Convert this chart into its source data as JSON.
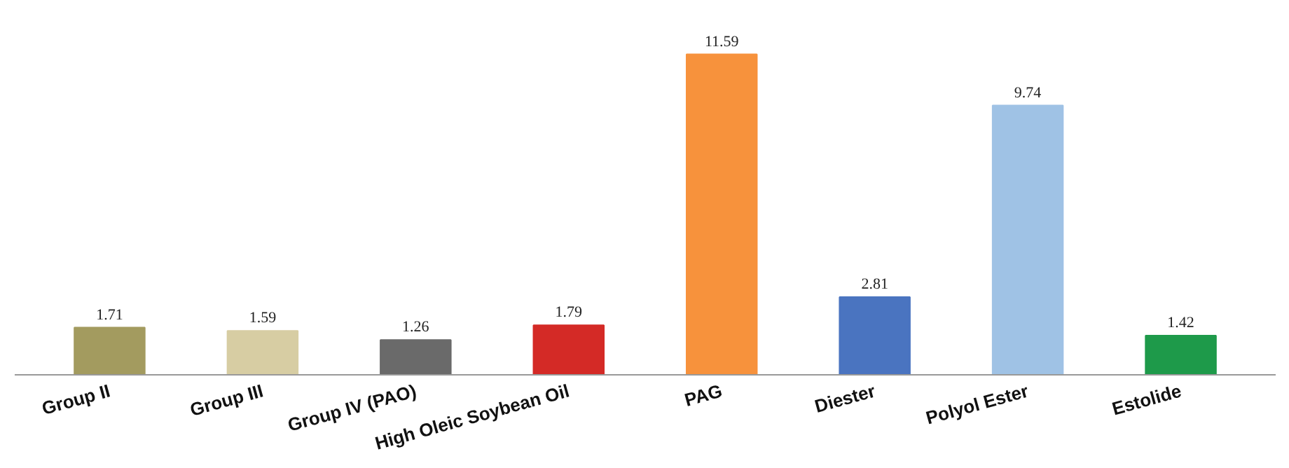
{
  "chart_data": {
    "type": "bar",
    "categories": [
      "Group II",
      "Group III",
      "Group IV (PAO)",
      "High Oleic Soybean Oil",
      "PAG",
      "Diester",
      "Polyol Ester",
      "Estolide"
    ],
    "values": [
      1.71,
      1.59,
      1.26,
      1.79,
      11.59,
      2.81,
      9.74,
      1.42
    ],
    "colors": [
      "#a39b5f",
      "#d7cda3",
      "#6a6a6a",
      "#d42a26",
      "#f7923c",
      "#4a74c0",
      "#9fc2e5",
      "#1e9a4a"
    ],
    "data_labels": true
  }
}
